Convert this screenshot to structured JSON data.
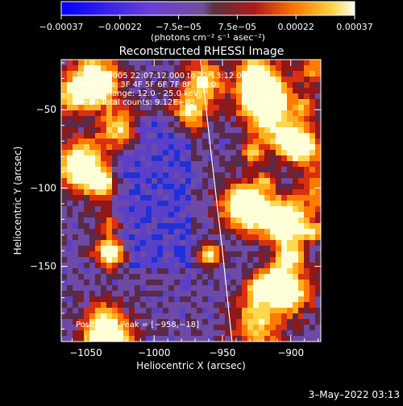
{
  "chart_data": {
    "type": "heatmap",
    "title": "Reconstructed RHESSI Image",
    "xlabel": "Heliocentric X (arcsec)",
    "ylabel": "Heliocentric Y (arcsec)",
    "xlim": [
      -1068,
      -878
    ],
    "ylim": [
      -198,
      -18
    ],
    "x_ticks": [
      {
        "value": -1050,
        "label": "−1050"
      },
      {
        "value": -1000,
        "label": "−1000"
      },
      {
        "value": -950,
        "label": "−950"
      },
      {
        "value": -900,
        "label": "−900"
      }
    ],
    "y_ticks": [
      {
        "value": -50,
        "label": "−50"
      },
      {
        "value": -100,
        "label": "−100"
      },
      {
        "value": -150,
        "label": "−150"
      }
    ],
    "colorbar": {
      "range": [
        -0.00037,
        0.00037
      ],
      "tick_labels": [
        "−0.00037",
        "−0.00022",
        "−7.5e−05",
        "7.5e−05",
        "0.00022",
        "0.00037"
      ],
      "unit": "(photons cm⁻² s⁻¹ asec⁻²)"
    },
    "annotations": [
      "12-Nov-2005 22:07:12.000 to 22:13:12.000",
      "Detectors: 3F 4F 5F 6F 7F 8F, Att 0",
      "Energy Range: 12.0 - 25.0 keV",
      "Clean     Total counts: 9.12E+03"
    ],
    "peak_label": "Position of Peak = [−958,−18]",
    "limb_curve": [
      [
        -966,
        -18
      ],
      [
        -958,
        -80
      ],
      [
        -950,
        -140
      ],
      [
        -943,
        -198
      ]
    ],
    "grid": false
  },
  "footer": {
    "date": "3–May–2022 03:13"
  },
  "colors": {
    "background": "#000000",
    "cb_negative": [
      "#0000ff",
      "#6a3fd8",
      "#6f4fa0"
    ],
    "cb_positive": [
      "#6f4fa0",
      "#b02020",
      "#ff8000",
      "#ffd040",
      "#ffffe8"
    ]
  }
}
